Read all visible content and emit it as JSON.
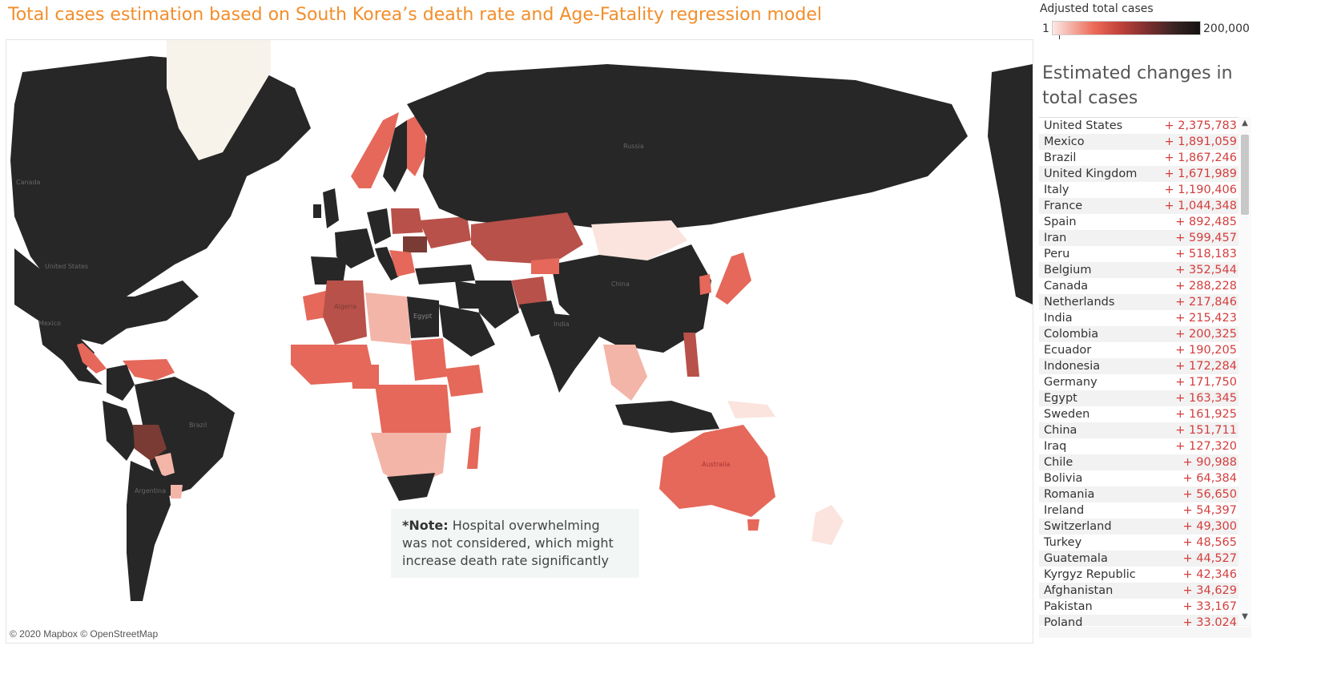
{
  "title": "Total cases estimation based on South Korea’s death rate and Age-Fatality regression model",
  "legend": {
    "title": "Adjusted total cases",
    "min": "1",
    "max": "200,000",
    "colors": [
      "#fbe9e5",
      "#ec6a57",
      "#c2433b",
      "#7a2e2e",
      "#3b2424",
      "#141212"
    ]
  },
  "side_panel": {
    "title": "Estimated changes in total cases",
    "rows": [
      {
        "country": "United States",
        "change": "+ 2,375,783"
      },
      {
        "country": "Mexico",
        "change": "+ 1,891,059"
      },
      {
        "country": "Brazil",
        "change": "+ 1,867,246"
      },
      {
        "country": "United Kingdom",
        "change": "+ 1,671,989"
      },
      {
        "country": "Italy",
        "change": "+ 1,190,406"
      },
      {
        "country": "France",
        "change": "+ 1,044,348"
      },
      {
        "country": "Spain",
        "change": "+ 892,485"
      },
      {
        "country": "Iran",
        "change": "+ 599,457"
      },
      {
        "country": "Peru",
        "change": "+ 518,183"
      },
      {
        "country": "Belgium",
        "change": "+ 352,544"
      },
      {
        "country": "Canada",
        "change": "+ 288,228"
      },
      {
        "country": "Netherlands",
        "change": "+ 217,846"
      },
      {
        "country": "India",
        "change": "+ 215,423"
      },
      {
        "country": "Colombia",
        "change": "+ 200,325"
      },
      {
        "country": "Ecuador",
        "change": "+ 190,205"
      },
      {
        "country": "Indonesia",
        "change": "+ 172,284"
      },
      {
        "country": "Germany",
        "change": "+ 171,750"
      },
      {
        "country": "Egypt",
        "change": "+ 163,345"
      },
      {
        "country": "Sweden",
        "change": "+ 161,925"
      },
      {
        "country": "China",
        "change": "+ 151,711"
      },
      {
        "country": "Iraq",
        "change": "+ 127,320"
      },
      {
        "country": "Chile",
        "change": "+ 90,988"
      },
      {
        "country": "Bolivia",
        "change": "+ 64,384"
      },
      {
        "country": "Romania",
        "change": "+ 56,650"
      },
      {
        "country": "Ireland",
        "change": "+ 54,397"
      },
      {
        "country": "Switzerland",
        "change": "+ 49,300"
      },
      {
        "country": "Turkey",
        "change": "+ 48,565"
      },
      {
        "country": "Guatemala",
        "change": "+ 44,527"
      },
      {
        "country": "Kyrgyz Republic",
        "change": "+ 42,346"
      },
      {
        "country": "Afghanistan",
        "change": "+ 34,629"
      },
      {
        "country": "Pakistan",
        "change": "+ 33,167"
      },
      {
        "country": "Poland",
        "change": "+ 33,024"
      }
    ]
  },
  "note": {
    "label": "*Note:",
    "text": " Hospital overwhelming was not considered, which might increase death rate significantly"
  },
  "map_labels": {
    "canada": "Canada",
    "usa": "United States",
    "mexico": "Mexico",
    "brazil": "Brazil",
    "argentina": "Argentina",
    "russia": "Russia",
    "china": "China",
    "india": "India",
    "algeria": "Algeria",
    "egypt": "Egypt",
    "australia": "Australia"
  },
  "credit": "© 2020 Mapbox © OpenStreetMap",
  "map_colors": {
    "black": "#272727",
    "dark_red": "#7a3b35",
    "mid_red": "#b8514a",
    "red": "#e5685a",
    "light": "#f3b5a8",
    "pale": "#fbe4dd",
    "greenland": "#f7f3ea",
    "grey": "#e6e6e6"
  }
}
